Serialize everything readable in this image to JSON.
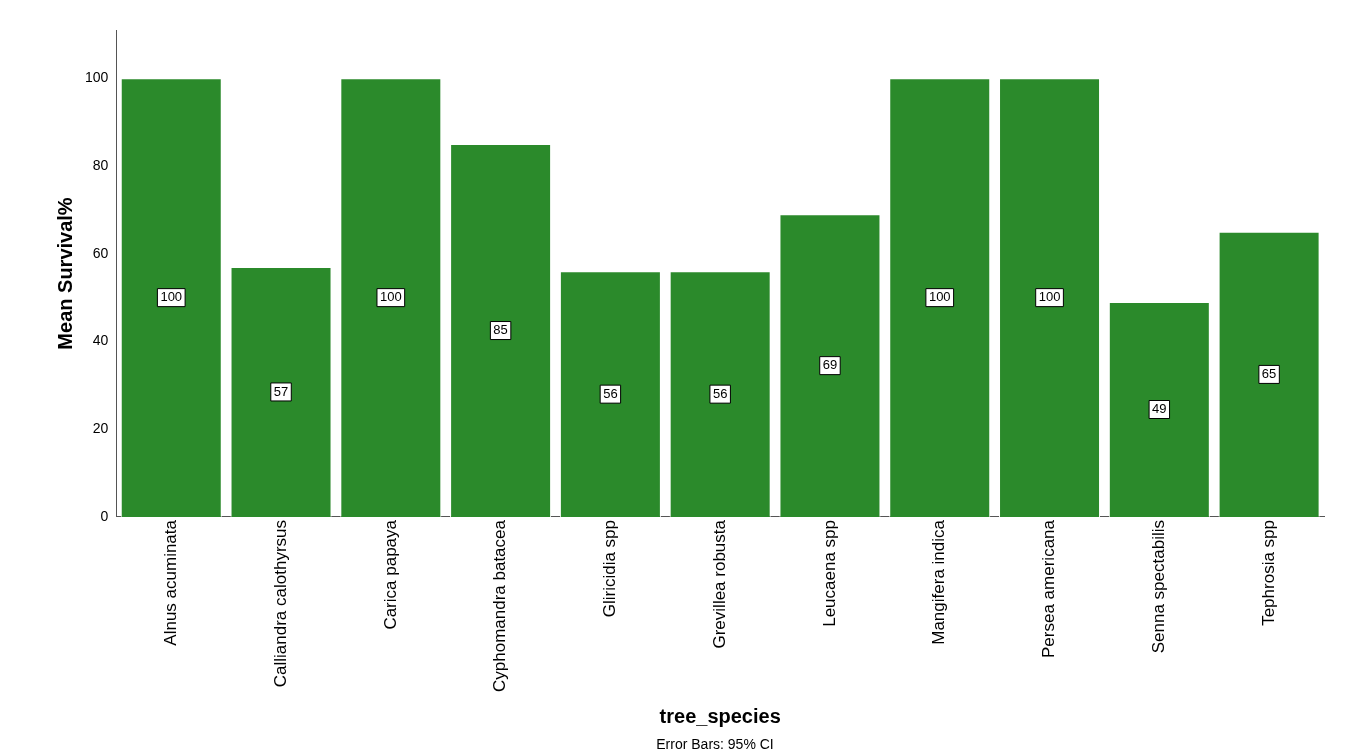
{
  "chart_data": {
    "type": "bar",
    "xlabel": "tree_species",
    "ylabel": "Mean Survival%",
    "categories": [
      "Alnus acuminata",
      "Calliandra calothyrsus",
      "Carica papaya",
      "Cyphomandra batacea",
      "Gliricidia spp",
      "Grevillea robusta",
      "Leucaena spp",
      "Mangifera indica",
      "Persea americana",
      "Senna spectabilis",
      "Tephrosia spp"
    ],
    "values": [
      100,
      57,
      100,
      85,
      56,
      56,
      69,
      100,
      100,
      49,
      65
    ],
    "color": "#2b8a2b",
    "ylim": [
      0,
      111
    ],
    "yticks": [
      0,
      20,
      40,
      60,
      80,
      100
    ],
    "grid": false,
    "legend": false,
    "data_labels": true,
    "annotations": [
      "Error Bars: 95% CI"
    ]
  }
}
